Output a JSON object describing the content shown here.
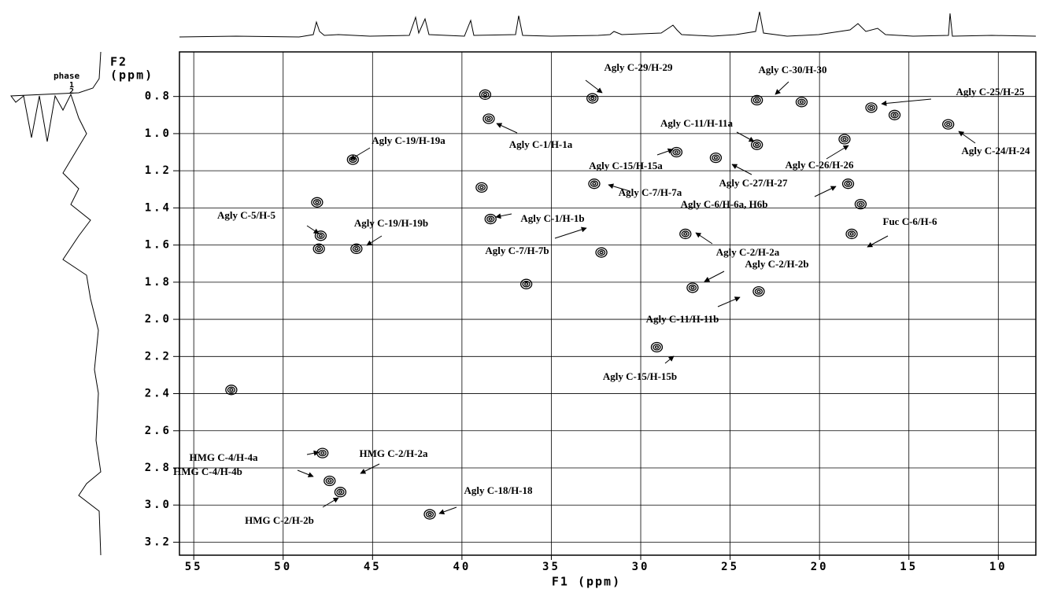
{
  "phase": {
    "label": "phase",
    "marks": [
      "1",
      "2"
    ]
  },
  "chart_data": {
    "type": "scatter",
    "x_label": "F1 (ppm)",
    "y_label_line1": "F2",
    "y_label_line2": "(ppm)",
    "xlim": [
      55.8,
      7.9
    ],
    "ylim": [
      0.56,
      3.27
    ],
    "xticks": [
      55,
      50,
      45,
      40,
      35,
      30,
      25,
      20,
      15,
      10
    ],
    "yticks": [
      0.8,
      {
        "value": 1,
        "label": "1.0"
      },
      1.2,
      1.4,
      1.6,
      1.8,
      {
        "value": 2,
        "label": "2.0"
      },
      2.2,
      2.4,
      2.6,
      2.8,
      {
        "value": 3,
        "label": "3.0"
      },
      3.2
    ],
    "grid": true,
    "series": [
      {
        "color": "#000000",
        "x": [
          38.7,
          38.5,
          32.7,
          23.5,
          21.0,
          17.1,
          15.8,
          12.8,
          23.5,
          18.6,
          28.0,
          25.8,
          46.1,
          38.9,
          32.6,
          18.4,
          48.1,
          17.7,
          38.4,
          47.9,
          48.0,
          45.9,
          32.2,
          27.5,
          18.2,
          36.4,
          27.1,
          23.4,
          29.1,
          52.9,
          47.8,
          47.4,
          46.8,
          41.8
        ],
        "values": [
          0.79,
          0.92,
          0.81,
          0.82,
          0.83,
          0.86,
          0.9,
          0.95,
          1.06,
          1.03,
          1.1,
          1.13,
          1.14,
          1.29,
          1.27,
          1.27,
          1.37,
          1.38,
          1.46,
          1.55,
          1.62,
          1.62,
          1.64,
          1.54,
          1.54,
          1.81,
          1.83,
          1.85,
          2.15,
          2.38,
          2.72,
          2.87,
          2.93,
          3.05
        ]
      }
    ],
    "annotations": [
      "Agly C-29/H-29",
      "Agly C-30/H-30",
      "Agly C-25/H-25",
      "Agly C-1/H-1a",
      "Agly C-11/H-11a",
      "Agly C-19/H-19a",
      "Agly C-24/H-24",
      "Agly C-15/H-15a",
      "Agly C-26/H-26",
      "Agly C-27/H-27",
      "Agly C-7/H-7a",
      "Agly C-6/H-6a, H6b",
      "Agly C-5/H-5",
      "Agly C-1/H-1b",
      "Agly C-19/H-19b",
      "Fuc C-6/H-6",
      "Agly C-7/H-7b",
      "Agly C-2/H-2a",
      "Agly C-2/H-2b",
      "Agly C-11/H-11b",
      "Agly C-15/H-15b",
      "Agly C-18/H-18",
      "HMG C-4/H-4a",
      "HMG C-2/H-2a",
      "HMG C-4/H-4b",
      "HMG C-2/H-2b"
    ]
  }
}
